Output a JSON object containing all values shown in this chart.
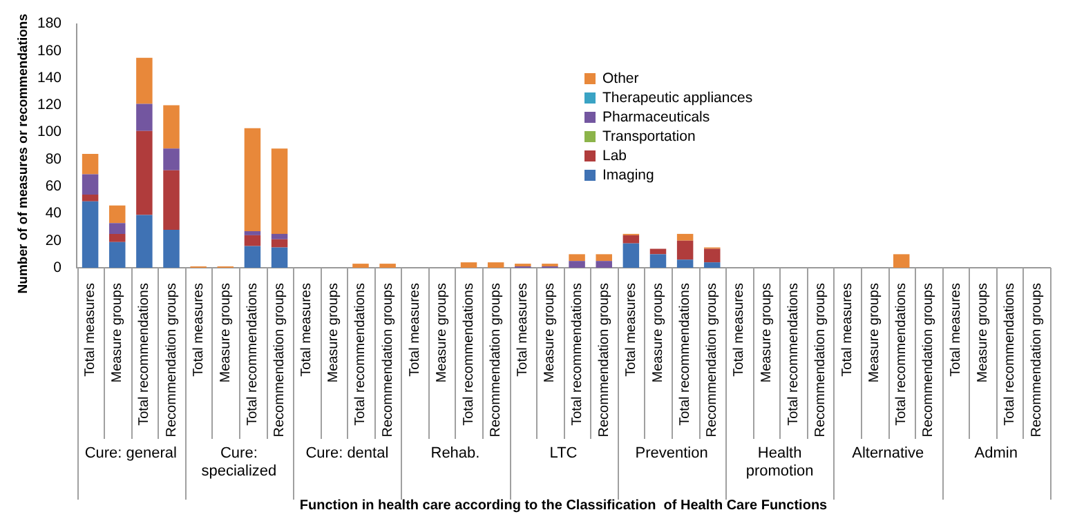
{
  "chart_data": {
    "type": "bar",
    "stacked": true,
    "ylabel": "Number of of measures or recommendations",
    "xlabel": "Function in health care according to the Classification  of Health Care Functions",
    "categories": [
      "Total measures",
      "Measure groups",
      "Total recommendations",
      "Recommendation groups",
      "Total measures",
      "Measure groups",
      "Total recommendations",
      "Recommendation groups",
      "Total measures",
      "Measure groups",
      "Total recommendations",
      "Recommendation groups",
      "Total measures",
      "Measure groups",
      "Total recommendations",
      "Recommendation groups",
      "Total measures",
      "Measure groups",
      "Total recommendations",
      "Recommendation groups",
      "Total measures",
      "Measure groups",
      "Total recommendations",
      "Recommendation groups",
      "Total measures",
      "Measure groups",
      "Total recommendations",
      "Recommendation groups",
      "Total measures",
      "Measure groups",
      "Total recommendations",
      "Recommendation groups",
      "Total measures",
      "Measure groups",
      "Total recommendations",
      "Recommendation groups"
    ],
    "annotations": [
      "Cure: general",
      "Cure: specialized",
      "Cure: dental",
      "Rehab.",
      "LTC",
      "Prevention",
      "Health promotion",
      "Alternative",
      "Admin"
    ],
    "series": [
      {
        "name": "Imaging",
        "color": "#3f72b4",
        "values": [
          49,
          19,
          39,
          28,
          0,
          0,
          16,
          15,
          0,
          0,
          0,
          0,
          0,
          0,
          0,
          0,
          0,
          0,
          0,
          0,
          18,
          10,
          6,
          4,
          0,
          0,
          0,
          0,
          0,
          0,
          0,
          0,
          0,
          0,
          0,
          0
        ]
      },
      {
        "name": "Lab",
        "color": "#b03c3c",
        "values": [
          5,
          6,
          62,
          44,
          0,
          0,
          8,
          6,
          0,
          0,
          0,
          0,
          0,
          0,
          0,
          0,
          0,
          0,
          0,
          0,
          6,
          4,
          14,
          10,
          0,
          0,
          0,
          0,
          0,
          0,
          0,
          0,
          0,
          0,
          0,
          0
        ]
      },
      {
        "name": "Transportation",
        "color": "#8cb44a",
        "values": [
          0,
          0,
          0,
          0,
          0,
          0,
          0,
          0,
          0,
          0,
          0,
          0,
          0,
          0,
          0,
          0,
          0,
          0,
          0,
          0,
          0,
          0,
          0,
          0,
          0,
          0,
          0,
          0,
          0,
          0,
          0,
          0,
          0,
          0,
          0,
          0
        ]
      },
      {
        "name": "Pharmaceuticals",
        "color": "#7356a0",
        "values": [
          15,
          8,
          20,
          16,
          0,
          0,
          3,
          4,
          0,
          0,
          0,
          0,
          0,
          0,
          0,
          0,
          1,
          1,
          5,
          5,
          0,
          0,
          0,
          0,
          0,
          0,
          0,
          0,
          0,
          0,
          0,
          0,
          0,
          0,
          0,
          0
        ]
      },
      {
        "name": "Therapeutic appliances",
        "color": "#3aa3c4",
        "values": [
          0,
          0,
          0,
          0,
          0,
          0,
          0,
          0,
          0,
          0,
          0,
          0,
          0,
          0,
          0,
          0,
          0,
          0,
          0,
          0,
          0,
          0,
          0,
          0,
          0,
          0,
          0,
          0,
          0,
          0,
          0,
          0,
          0,
          0,
          0,
          0
        ]
      },
      {
        "name": "Other",
        "color": "#e8883a",
        "values": [
          15,
          13,
          34,
          32,
          1,
          1,
          76,
          63,
          0,
          0,
          3,
          3,
          0,
          0,
          4,
          4,
          2,
          2,
          5,
          5,
          1,
          0,
          5,
          1,
          0,
          0,
          0,
          0,
          0,
          0,
          10,
          0,
          0,
          0,
          0,
          0
        ]
      }
    ],
    "ylim": [
      0,
      180
    ],
    "yticks": [
      0,
      20,
      40,
      60,
      80,
      100,
      120,
      140,
      160,
      180
    ],
    "grid": false,
    "legend": "top"
  }
}
